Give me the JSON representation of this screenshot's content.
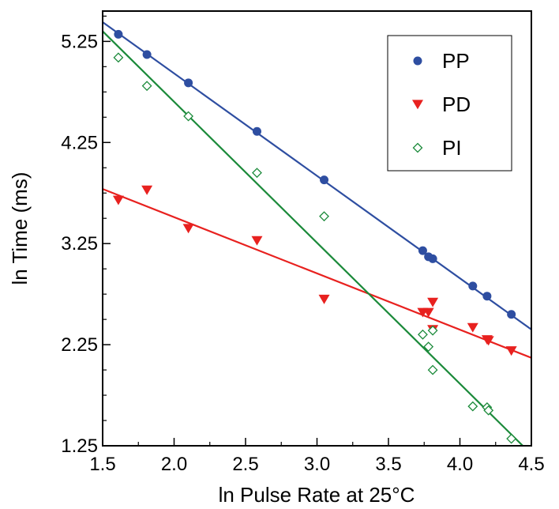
{
  "chart_data": {
    "type": "scatter",
    "xlabel": "ln Pulse Rate at 25°C",
    "ylabel": "ln Time (ms)",
    "xlim": [
      1.5,
      4.5
    ],
    "ylim": [
      1.25,
      5.55
    ],
    "xticks": [
      1.5,
      2.0,
      2.5,
      3.0,
      3.5,
      4.0,
      4.5
    ],
    "xtick_labels": [
      "1.5",
      "2.0",
      "2.5",
      "3.0",
      "3.5",
      "4.0",
      "4.5"
    ],
    "yticks": [
      1.25,
      2.25,
      3.25,
      4.25,
      5.25
    ],
    "ytick_labels": [
      "1.25",
      "2.25",
      "3.25",
      "4.25",
      "5.25"
    ],
    "grid": false,
    "legend_position": "top-right",
    "series": [
      {
        "name": "PP",
        "marker": "circle",
        "color": "#2e4ea1",
        "points": [
          [
            1.61,
            5.32
          ],
          [
            1.81,
            5.12
          ],
          [
            2.1,
            4.84
          ],
          [
            2.58,
            4.36
          ],
          [
            3.05,
            3.88
          ],
          [
            3.74,
            3.18
          ],
          [
            3.78,
            3.12
          ],
          [
            3.81,
            3.1
          ],
          [
            4.09,
            2.83
          ],
          [
            4.19,
            2.73
          ],
          [
            4.36,
            2.55
          ]
        ],
        "fit": [
          [
            1.5,
            5.44
          ],
          [
            4.5,
            2.4
          ]
        ]
      },
      {
        "name": "PD",
        "marker": "triangle-down",
        "color": "#e8211f",
        "points": [
          [
            1.61,
            3.68
          ],
          [
            1.81,
            3.78
          ],
          [
            2.1,
            3.4
          ],
          [
            2.58,
            3.28
          ],
          [
            3.05,
            2.7
          ],
          [
            3.74,
            2.57
          ],
          [
            3.78,
            2.57
          ],
          [
            3.81,
            2.67
          ],
          [
            3.81,
            2.4
          ],
          [
            4.09,
            2.42
          ],
          [
            4.19,
            2.3
          ],
          [
            4.2,
            2.29
          ],
          [
            4.36,
            2.19
          ]
        ],
        "fit": [
          [
            1.5,
            3.79
          ],
          [
            4.5,
            2.12
          ]
        ]
      },
      {
        "name": "PI",
        "marker": "diamond-open",
        "color": "#1b8a3a",
        "points": [
          [
            1.61,
            5.09
          ],
          [
            1.81,
            4.81
          ],
          [
            2.1,
            4.51
          ],
          [
            2.58,
            3.95
          ],
          [
            3.05,
            3.52
          ],
          [
            3.74,
            2.35
          ],
          [
            3.78,
            2.23
          ],
          [
            3.81,
            2.39
          ],
          [
            3.81,
            2.0
          ],
          [
            4.09,
            1.64
          ],
          [
            4.19,
            1.63
          ],
          [
            4.2,
            1.6
          ],
          [
            4.36,
            1.32
          ]
        ],
        "fit": [
          [
            1.5,
            5.35
          ],
          [
            4.44,
            1.25
          ]
        ]
      }
    ]
  }
}
